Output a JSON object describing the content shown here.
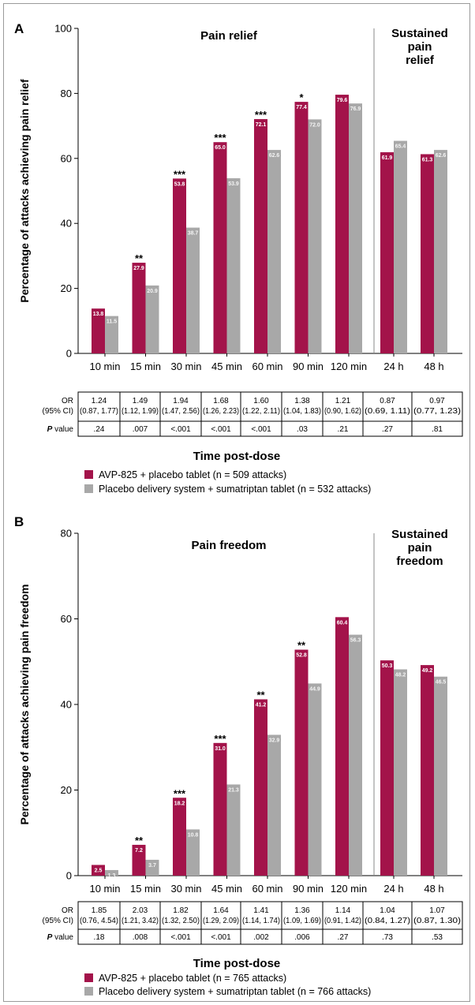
{
  "colors": {
    "avp": "#a3134a",
    "placebo": "#a8a8a8"
  },
  "panels": [
    {
      "letter": "A",
      "ylabel": "Percentage of attacks achieving pain relief",
      "xlabel": "Time post-dose",
      "yticks": [
        "0",
        "20",
        "40",
        "60",
        "80",
        "100"
      ],
      "section_left": "Pain relief",
      "section_right": [
        "Sustained",
        "pain",
        "relief"
      ],
      "table_row1_label": [
        "OR",
        "(95% CI)"
      ],
      "table_row2_label": "P value",
      "legend": [
        "AVP-825 + placebo tablet (n = 509 attacks)",
        "Placebo delivery system + sumatriptan tablet (n = 532 attacks)"
      ]
    },
    {
      "letter": "B",
      "ylabel": "Percentage of attacks achieving pain freedom",
      "xlabel": "Time post-dose",
      "yticks": [
        "0",
        "20",
        "40",
        "60",
        "80"
      ],
      "section_left": "Pain freedom",
      "section_right": [
        "Sustained",
        "pain",
        "freedom"
      ],
      "table_row1_label": [
        "OR",
        "(95% CI)"
      ],
      "table_row2_label": "P value",
      "legend": [
        "AVP-825 + placebo tablet (n = 765 attacks)",
        "Placebo delivery system + sumatriptan tablet (n = 766 attacks)"
      ]
    }
  ],
  "chart_data": [
    {
      "type": "bar",
      "categories": [
        "10 min",
        "15 min",
        "30 min",
        "45 min",
        "60 min",
        "90 min",
        "120 min",
        "24 h",
        "48 h"
      ],
      "ylim": [
        0,
        100
      ],
      "ylabel": "Percentage of attacks achieving pain relief",
      "xlabel": "Time post-dose",
      "series": [
        {
          "name": "AVP-825 + placebo tablet (n = 509 attacks)",
          "values": [
            13.8,
            27.9,
            53.8,
            65.0,
            72.1,
            77.4,
            79.6,
            61.9,
            61.3
          ],
          "labels": [
            "13.8",
            "27.9",
            "53.8",
            "65.0",
            "72.1",
            "77.4",
            "79.6",
            "61.9",
            "61.3"
          ]
        },
        {
          "name": "Placebo delivery system + sumatriptan tablet (n = 532 attacks)",
          "values": [
            11.5,
            20.9,
            38.7,
            53.9,
            62.6,
            72.0,
            76.9,
            65.4,
            62.6
          ],
          "labels": [
            "11.5",
            "20.9",
            "38.7",
            "53.9",
            "62.6",
            "72.0",
            "76.9",
            "65.4",
            "62.6"
          ]
        }
      ],
      "significance": [
        "",
        "**",
        "***",
        "***",
        "***",
        "*",
        "",
        "",
        ""
      ],
      "or_values": [
        "1.24",
        "1.49",
        "1.94",
        "1.68",
        "1.60",
        "1.38",
        "1.21",
        "0.87",
        "0.97"
      ],
      "ci_values": [
        "(0.87, 1.77)",
        "(1.12, 1.99)",
        "(1.47, 2.56)",
        "(1.26, 2.23)",
        "(1.22, 2.11)",
        "(1.04, 1.83)",
        "(0.90, 1.62)",
        "(0.69, 1.11)",
        "(0.77, 1.23)"
      ],
      "p_values": [
        ".24",
        ".007",
        "<.001",
        "<.001",
        "<.001",
        ".03",
        ".21",
        ".27",
        ".81"
      ]
    },
    {
      "type": "bar",
      "categories": [
        "10 min",
        "15 min",
        "30 min",
        "45 min",
        "60 min",
        "90 min",
        "120 min",
        "24 h",
        "48 h"
      ],
      "ylim": [
        0,
        80
      ],
      "ylabel": "Percentage of attacks achieving pain freedom",
      "xlabel": "Time post-dose",
      "series": [
        {
          "name": "AVP-825 + placebo tablet (n = 765 attacks)",
          "values": [
            2.5,
            7.2,
            18.2,
            31.0,
            41.2,
            52.8,
            60.4,
            50.3,
            49.2
          ],
          "labels": [
            "2.5",
            "7.2",
            "18.2",
            "31.0",
            "41.2",
            "52.8",
            "60.4",
            "50.3",
            "49.2"
          ]
        },
        {
          "name": "Placebo delivery system + sumatriptan tablet (n = 766 attacks)",
          "values": [
            1.3,
            3.7,
            10.8,
            21.3,
            32.9,
            44.9,
            56.3,
            48.2,
            46.5
          ],
          "labels": [
            "1.3",
            "3.7",
            "10.8",
            "21.3",
            "32.9",
            "44.9",
            "56.3",
            "48.2",
            "46.5"
          ]
        }
      ],
      "significance": [
        "",
        "**",
        "***",
        "***",
        "**",
        "**",
        "",
        "",
        ""
      ],
      "or_values": [
        "1.85",
        "2.03",
        "1.82",
        "1.64",
        "1.41",
        "1.36",
        "1.14",
        "1.04",
        "1.07"
      ],
      "ci_values": [
        "(0.76, 4.54)",
        "(1.21, 3.42)",
        "(1.32, 2.50)",
        "(1.29, 2.09)",
        "(1.14, 1.74)",
        "(1.09, 1.69)",
        "(0.91, 1.42)",
        "(0.84, 1.27)",
        "(0.87, 1.30)"
      ],
      "p_values": [
        ".18",
        ".008",
        "<.001",
        "<.001",
        ".002",
        ".006",
        ".27",
        ".73",
        ".53"
      ]
    }
  ]
}
